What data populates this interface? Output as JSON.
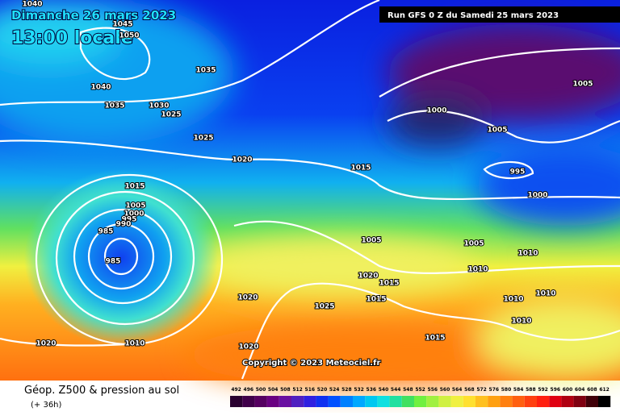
{
  "header": {
    "date": "Dimanche 26 mars 2023",
    "time": "13:00 locale",
    "run": "Run GFS 0 Z du Samedi 25 mars 2023"
  },
  "copyright": "Copyright © 2023 Meteociel.fr",
  "footer": {
    "title": "Géop. Z500 & pression au sol",
    "lead": "(+ 36h)"
  },
  "isobars": [
    1040,
    1045,
    1050,
    1035,
    1040,
    1035,
    1030,
    1025,
    1025,
    1020,
    1015,
    1000,
    1005,
    1005,
    995,
    1000,
    1015,
    1005,
    1000,
    995,
    990,
    985,
    985,
    1005,
    1005,
    1010,
    1010,
    1020,
    1015,
    1020,
    1025,
    1015,
    1010,
    1010,
    1010,
    1020,
    1010,
    1020,
    1015
  ],
  "scale": [
    492,
    496,
    500,
    504,
    508,
    512,
    516,
    520,
    524,
    528,
    532,
    536,
    540,
    544,
    548,
    552,
    556,
    560,
    564,
    568,
    572,
    576,
    580,
    584,
    588,
    592,
    596,
    600,
    604,
    608,
    612
  ]
}
